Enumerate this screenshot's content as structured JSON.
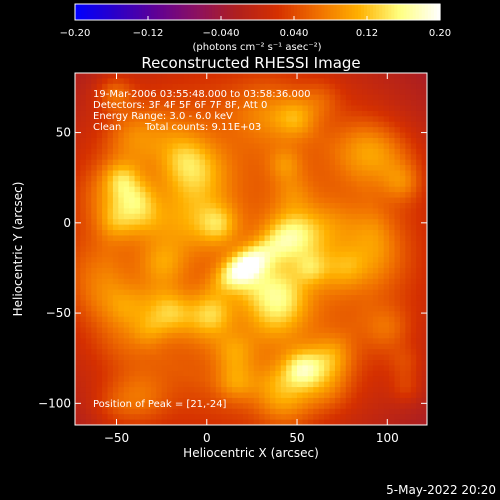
{
  "chart_data": {
    "type": "heatmap",
    "title": "Reconstructed RHESSI Image",
    "xlabel": "Heliocentric X (arcsec)",
    "ylabel": "Heliocentric Y (arcsec)",
    "xlim": [
      -73,
      122
    ],
    "ylim": [
      -112,
      83
    ],
    "xticks": [
      -50,
      0,
      50,
      100
    ],
    "yticks": [
      -100,
      -50,
      0,
      50
    ],
    "colorbar": {
      "range": [
        -0.2,
        0.2
      ],
      "ticks": [
        "−0.20",
        "−0.12",
        "−0.040",
        "0.040",
        "0.12",
        "0.20"
      ],
      "tick_values": [
        -0.2,
        -0.12,
        -0.04,
        0.04,
        0.12,
        0.2
      ],
      "unit_label": "(photons cm⁻² s⁻¹ asec⁻²)",
      "colormap": [
        "#0000ff",
        "#2b00c8",
        "#600095",
        "#8c1060",
        "#b0201e",
        "#d53000",
        "#f07000",
        "#ffb000",
        "#ffff80",
        "#ffffff"
      ]
    },
    "annotations": {
      "time_range": "19-Mar-2006 03:55:48.000 to 03:58:36.000",
      "detectors": "Detectors: 3F 4F 5F 6F 7F 8F, Att 0",
      "energy_range": "Energy Range: 3.0 - 6.0 keV",
      "algorithm": "Clean",
      "total_counts": "Total counts: 9.11E+03",
      "peak_position": "Position of Peak = [21,-24]"
    },
    "peak": {
      "x": 21,
      "y": -24,
      "value": 0.2
    },
    "background_level": 0.05
  },
  "footer": {
    "timestamp": "5-May-2022 20:20"
  }
}
